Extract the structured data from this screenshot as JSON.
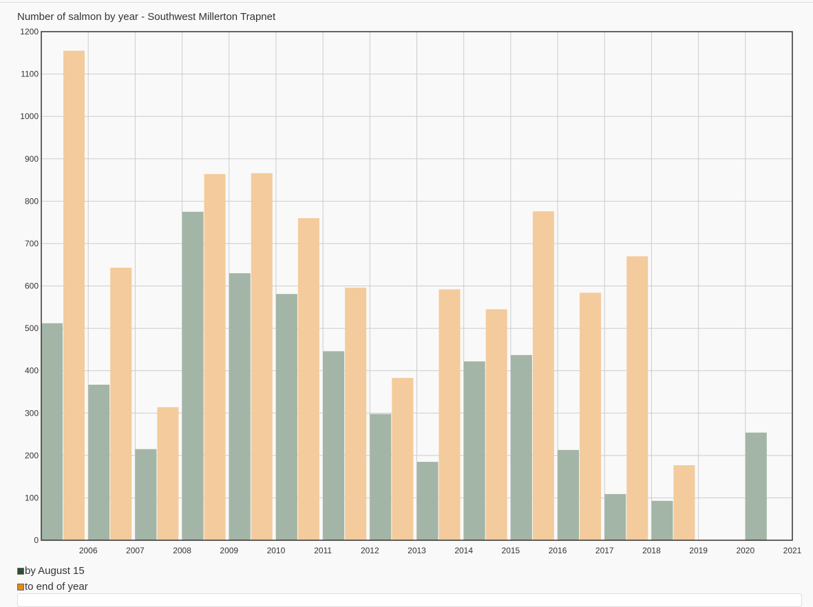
{
  "chart_data": {
    "type": "bar",
    "title": "Number of salmon by year - Southwest Millerton Trapnet",
    "categories": [
      "2006",
      "2007",
      "2008",
      "2009",
      "2010",
      "2011",
      "2012",
      "2013",
      "2014",
      "2015",
      "2016",
      "2017",
      "2018",
      "2019",
      "2020",
      "2021"
    ],
    "series": [
      {
        "name": "by August 15",
        "color": "#a3b5a6",
        "legend_color": "#2d4f30",
        "values": [
          512,
          367,
          215,
          775,
          630,
          581,
          446,
          298,
          185,
          422,
          437,
          213,
          109,
          93,
          null,
          254
        ]
      },
      {
        "name": "to end of year",
        "color": "#f4cb9c",
        "legend_color": "#e8861a",
        "values": [
          1155,
          643,
          314,
          864,
          866,
          760,
          596,
          383,
          592,
          545,
          776,
          584,
          670,
          177,
          null,
          null
        ]
      }
    ],
    "ylim": [
      0,
      1200
    ],
    "yticks": [
      0,
      100,
      200,
      300,
      400,
      500,
      600,
      700,
      800,
      900,
      1000,
      1100,
      1200
    ],
    "grid": true,
    "legend_placement": "bottom-left"
  }
}
